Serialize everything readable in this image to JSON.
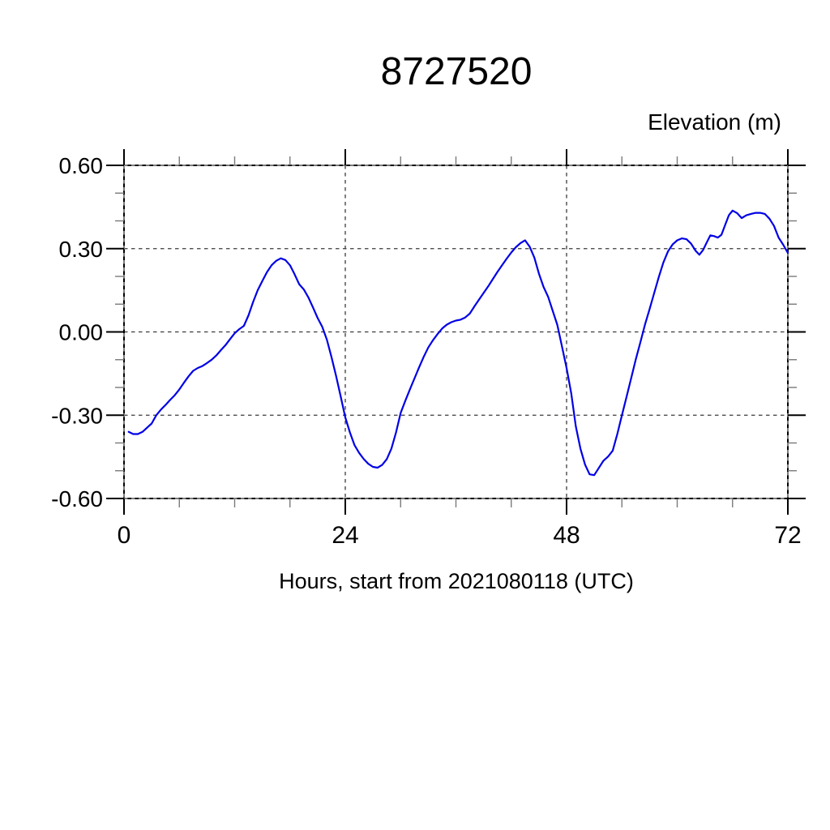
{
  "chart_data": {
    "type": "line",
    "title": "8727520",
    "xlabel": "Hours, start from 2021080118 (UTC)",
    "ylabel": "Elevation (m)",
    "xlim": [
      0,
      72
    ],
    "ylim": [
      -0.6,
      0.6
    ],
    "x_major_ticks": [
      0,
      24,
      48,
      72
    ],
    "x_minor_step": 6,
    "y_major_ticks": [
      -0.6,
      -0.3,
      0,
      0.3,
      0.6
    ],
    "y_minor_step": 0.1,
    "y_tick_labels": [
      "-0.60",
      "-0.30",
      "0.00",
      "0.30",
      "0.60"
    ],
    "x_tick_labels": [
      "0",
      "24",
      "48",
      "72"
    ],
    "grid": "dashed lines at all major ticks, both axes",
    "legend": null,
    "line_color": "#0000e6",
    "series": [
      {
        "name": "elevation",
        "color": "#0000e6",
        "points": [
          [
            0.5,
            -0.36
          ],
          [
            1,
            -0.368
          ],
          [
            1.5,
            -0.368
          ],
          [
            2,
            -0.36
          ],
          [
            2.5,
            -0.345
          ],
          [
            3,
            -0.33
          ],
          [
            3.5,
            -0.3
          ],
          [
            4,
            -0.28
          ],
          [
            4.5,
            -0.263
          ],
          [
            5,
            -0.245
          ],
          [
            5.5,
            -0.228
          ],
          [
            6,
            -0.207
          ],
          [
            6.5,
            -0.183
          ],
          [
            7,
            -0.16
          ],
          [
            7.5,
            -0.14
          ],
          [
            8,
            -0.13
          ],
          [
            8.5,
            -0.123
          ],
          [
            9,
            -0.112
          ],
          [
            9.5,
            -0.1
          ],
          [
            10,
            -0.085
          ],
          [
            10.5,
            -0.066
          ],
          [
            11,
            -0.048
          ],
          [
            11.5,
            -0.026
          ],
          [
            12,
            -0.005
          ],
          [
            12.5,
            0.01
          ],
          [
            13,
            0.022
          ],
          [
            13.5,
            0.06
          ],
          [
            14,
            0.108
          ],
          [
            14.5,
            0.15
          ],
          [
            15,
            0.183
          ],
          [
            15.5,
            0.215
          ],
          [
            16,
            0.24
          ],
          [
            16.5,
            0.256
          ],
          [
            17,
            0.265
          ],
          [
            17.5,
            0.259
          ],
          [
            18,
            0.24
          ],
          [
            18.5,
            0.208
          ],
          [
            19,
            0.172
          ],
          [
            19.5,
            0.153
          ],
          [
            20,
            0.124
          ],
          [
            20.5,
            0.088
          ],
          [
            21,
            0.05
          ],
          [
            21.5,
            0.018
          ],
          [
            22,
            -0.028
          ],
          [
            22.5,
            -0.09
          ],
          [
            23,
            -0.158
          ],
          [
            23.5,
            -0.232
          ],
          [
            24,
            -0.308
          ],
          [
            24.5,
            -0.362
          ],
          [
            25,
            -0.408
          ],
          [
            25.5,
            -0.436
          ],
          [
            26,
            -0.458
          ],
          [
            26.5,
            -0.475
          ],
          [
            27,
            -0.486
          ],
          [
            27.5,
            -0.489
          ],
          [
            28,
            -0.479
          ],
          [
            28.5,
            -0.458
          ],
          [
            29,
            -0.42
          ],
          [
            29.5,
            -0.362
          ],
          [
            30,
            -0.292
          ],
          [
            30.5,
            -0.249
          ],
          [
            31,
            -0.208
          ],
          [
            31.5,
            -0.168
          ],
          [
            32,
            -0.128
          ],
          [
            32.5,
            -0.09
          ],
          [
            33,
            -0.056
          ],
          [
            33.5,
            -0.03
          ],
          [
            34,
            -0.008
          ],
          [
            34.5,
            0.012
          ],
          [
            35,
            0.026
          ],
          [
            35.5,
            0.035
          ],
          [
            36,
            0.041
          ],
          [
            36.5,
            0.044
          ],
          [
            37,
            0.052
          ],
          [
            37.5,
            0.066
          ],
          [
            38,
            0.092
          ],
          [
            38.5,
            0.116
          ],
          [
            39,
            0.14
          ],
          [
            39.5,
            0.164
          ],
          [
            40,
            0.19
          ],
          [
            40.5,
            0.216
          ],
          [
            41,
            0.24
          ],
          [
            41.5,
            0.264
          ],
          [
            42,
            0.286
          ],
          [
            42.5,
            0.305
          ],
          [
            43,
            0.32
          ],
          [
            43.5,
            0.33
          ],
          [
            44,
            0.307
          ],
          [
            44.5,
            0.268
          ],
          [
            45,
            0.21
          ],
          [
            45.5,
            0.162
          ],
          [
            46,
            0.126
          ],
          [
            46.5,
            0.076
          ],
          [
            47,
            0.025
          ],
          [
            47.5,
            -0.052
          ],
          [
            48,
            -0.13
          ],
          [
            48.5,
            -0.22
          ],
          [
            49,
            -0.34
          ],
          [
            49.5,
            -0.42
          ],
          [
            50,
            -0.478
          ],
          [
            50.5,
            -0.513
          ],
          [
            51,
            -0.516
          ],
          [
            51.5,
            -0.49
          ],
          [
            52,
            -0.464
          ],
          [
            52.5,
            -0.449
          ],
          [
            53,
            -0.428
          ],
          [
            53.5,
            -0.368
          ],
          [
            54,
            -0.3
          ],
          [
            54.5,
            -0.235
          ],
          [
            55,
            -0.168
          ],
          [
            55.5,
            -0.1
          ],
          [
            56,
            -0.038
          ],
          [
            56.5,
            0.026
          ],
          [
            57,
            0.082
          ],
          [
            57.5,
            0.14
          ],
          [
            58,
            0.198
          ],
          [
            58.5,
            0.25
          ],
          [
            59,
            0.29
          ],
          [
            59.5,
            0.315
          ],
          [
            60,
            0.33
          ],
          [
            60.5,
            0.337
          ],
          [
            61,
            0.334
          ],
          [
            61.5,
            0.318
          ],
          [
            62,
            0.292
          ],
          [
            62.4,
            0.278
          ],
          [
            62.8,
            0.295
          ],
          [
            63.2,
            0.322
          ],
          [
            63.6,
            0.348
          ],
          [
            64,
            0.345
          ],
          [
            64.4,
            0.34
          ],
          [
            64.8,
            0.35
          ],
          [
            65.2,
            0.385
          ],
          [
            65.6,
            0.42
          ],
          [
            66,
            0.437
          ],
          [
            66.5,
            0.428
          ],
          [
            67,
            0.41
          ],
          [
            67.5,
            0.42
          ],
          [
            68,
            0.425
          ],
          [
            68.5,
            0.429
          ],
          [
            69,
            0.429
          ],
          [
            69.5,
            0.425
          ],
          [
            70,
            0.408
          ],
          [
            70.5,
            0.382
          ],
          [
            71,
            0.34
          ],
          [
            71.5,
            0.314
          ],
          [
            72,
            0.285
          ]
        ]
      }
    ]
  }
}
